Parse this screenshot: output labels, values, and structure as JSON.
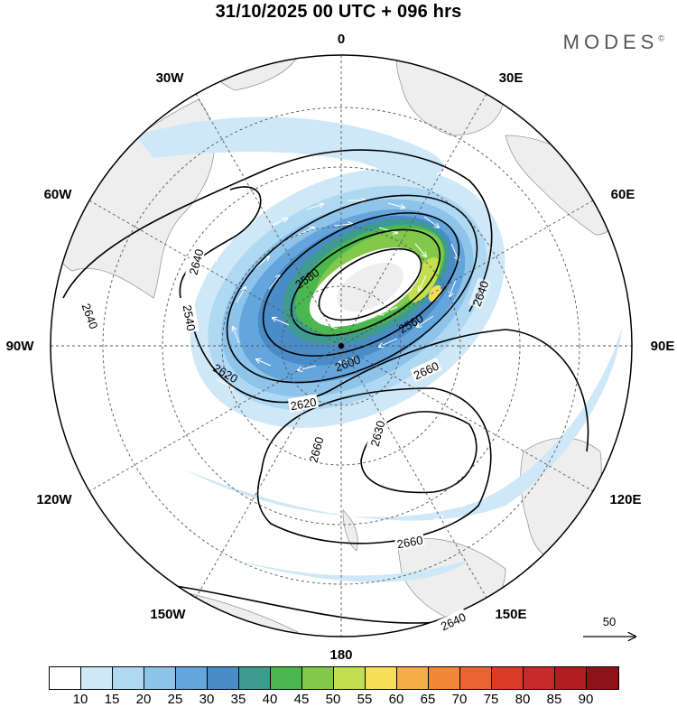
{
  "title": "31/10/2025  00 UTC  + 096 hrs",
  "brand": "MODES",
  "brand_mark": "©",
  "lon_labels": {
    "l0": "0",
    "l30e": "30E",
    "l60e": "60E",
    "l90e": "90E",
    "l120e": "120E",
    "l150e": "150E",
    "l180": "180",
    "l150w": "150W",
    "l120w": "120W",
    "l90w": "90W",
    "l60w": "60W",
    "l30w": "30W"
  },
  "contour_labels": {
    "c1": "2640",
    "c2": "2640",
    "c3": "2540",
    "c4": "2580",
    "c5": "2560",
    "c6": "2640",
    "c7": "2620",
    "c8": "2600",
    "c9": "2660",
    "c10": "2620",
    "c11": "2630",
    "c12": "2660",
    "c13": "2660",
    "c14": "2640"
  },
  "wind_reference": "50",
  "colorbar": {
    "colors": [
      "#ffffff",
      "#cfe8f7",
      "#afd8f3",
      "#8ec3ea",
      "#64a5dc",
      "#4a8cc8",
      "#3f9a90",
      "#4bb84f",
      "#82c94b",
      "#c4df4e",
      "#f5df58",
      "#f5ad48",
      "#f08838",
      "#ea6331",
      "#dd3b2a",
      "#c82929",
      "#b01e23",
      "#8e1218"
    ],
    "labels": [
      "10",
      "15",
      "20",
      "25",
      "30",
      "35",
      "40",
      "45",
      "50",
      "55",
      "60",
      "65",
      "70",
      "75",
      "80",
      "85",
      "90"
    ]
  }
}
